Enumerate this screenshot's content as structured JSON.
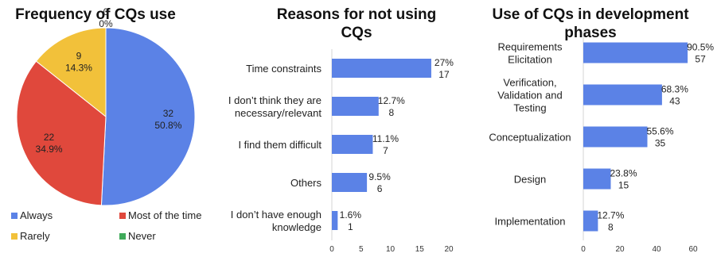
{
  "chart_data": [
    {
      "type": "pie",
      "title": "Frequency of CQs use",
      "slices": [
        {
          "name": "Always",
          "value": 32,
          "percent": "50.8%",
          "color": "#5b82e6"
        },
        {
          "name": "Most of the time",
          "value": 22,
          "percent": "34.9%",
          "color": "#e0483c"
        },
        {
          "name": "Rarely",
          "value": 9,
          "percent": "14.3%",
          "color": "#f2c13a"
        },
        {
          "name": "Never",
          "value": 0,
          "percent": "0%",
          "color": "#3faa5a"
        }
      ],
      "legend": "bottom"
    },
    {
      "type": "bar",
      "orientation": "horizontal",
      "title": "Reasons for not using CQs",
      "categories": [
        "Time constraints",
        "I don't think they are necessary/relevant",
        "I find them difficult",
        "Others",
        "I don't have enough knowledge"
      ],
      "values": [
        17,
        8,
        7,
        6,
        1
      ],
      "percents": [
        "27%",
        "12.7%",
        "11.1%",
        "9.5%",
        "1.6%"
      ],
      "xlim": [
        0,
        20
      ],
      "xticks": [
        0,
        5,
        10,
        15,
        20
      ],
      "color": "#5b82e6"
    },
    {
      "type": "bar",
      "orientation": "horizontal",
      "title": "Use of CQs in development phases",
      "categories": [
        "Requirements Elicitation",
        "Verification, Validation and Testing",
        "Conceptualization",
        "Design",
        "Implementation"
      ],
      "values": [
        57,
        43,
        35,
        15,
        8
      ],
      "percents": [
        "90.5%",
        "68.3%",
        "55.6%",
        "23.8%",
        "12.7%"
      ],
      "xlim": [
        0,
        60
      ],
      "xticks": [
        0,
        20,
        40,
        60
      ],
      "color": "#5b82e6"
    }
  ]
}
